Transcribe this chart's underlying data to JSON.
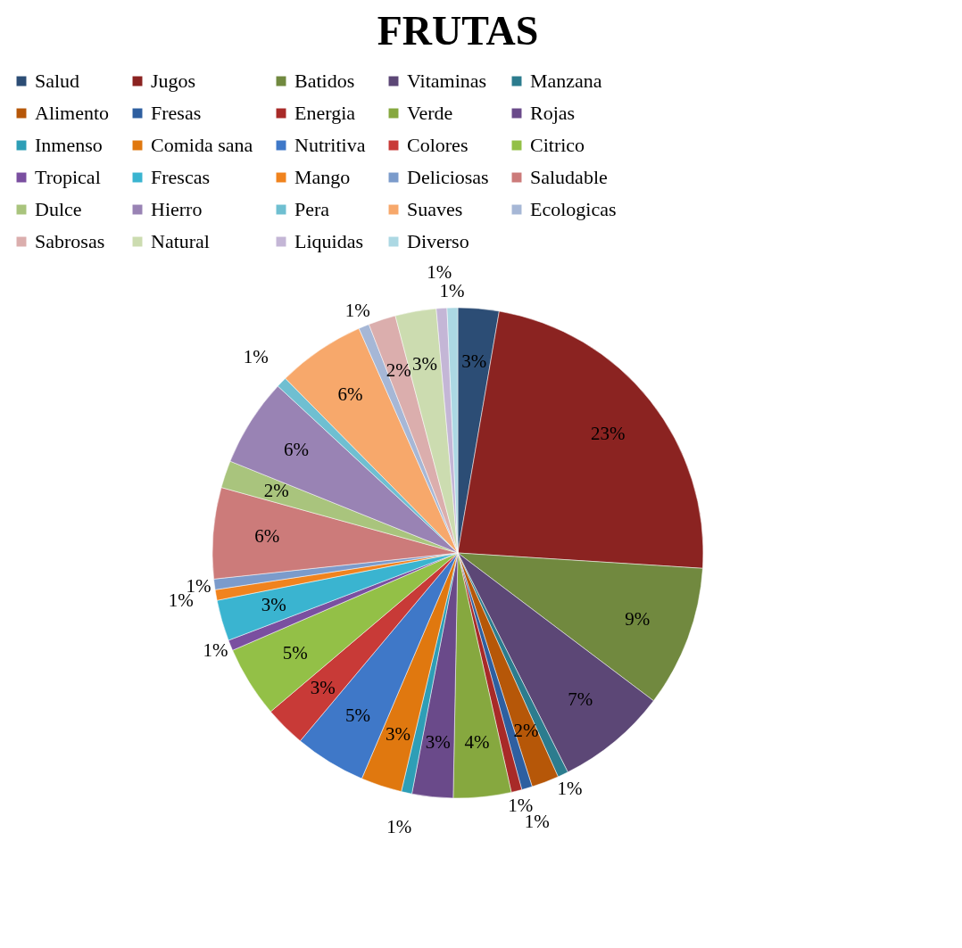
{
  "chart_data": {
    "type": "pie",
    "title": "FRUTAS",
    "categories": [
      "Salud",
      "Jugos",
      "Batidos",
      "Vitaminas",
      "Manzana",
      "Alimento",
      "Fresas",
      "Energia",
      "Verde",
      "Rojas",
      "Inmenso",
      "Comida sana",
      "Nutritiva",
      "Colores",
      "Citrico",
      "Tropical",
      "Frescas",
      "Mango",
      "Deliciosas",
      "Saludable",
      "Dulce",
      "Hierro",
      "Pera",
      "Suaves",
      "Ecologicas",
      "Sabrosas",
      "Natural",
      "Liquidas",
      "Diverso"
    ],
    "values": [
      2.7,
      23.3,
      9.3,
      7.3,
      0.7,
      1.8,
      0.7,
      0.7,
      3.8,
      2.7,
      0.7,
      2.7,
      4.7,
      2.7,
      4.7,
      0.7,
      2.7,
      0.7,
      0.7,
      6.0,
      1.8,
      5.8,
      0.7,
      5.8,
      0.7,
      1.8,
      2.7,
      0.7,
      0.7
    ],
    "value_labels": [
      "3%",
      "23%",
      "9%",
      "7%",
      "1%",
      "2%",
      "1%",
      "1%",
      "4%",
      "3%",
      "1%",
      "3%",
      "5%",
      "3%",
      "5%",
      "1%",
      "3%",
      "1%",
      "1%",
      "6%",
      "2%",
      "6%",
      "1%",
      "6%",
      "1%",
      "2%",
      "3%",
      "1%",
      "1%"
    ],
    "colors": [
      "#2c4d75",
      "#8b2321",
      "#71893f",
      "#5c4776",
      "#2c7c8e",
      "#b65708",
      "#2e5fa0",
      "#a82a28",
      "#86a83f",
      "#6a4a8a",
      "#2e9eb6",
      "#e0780f",
      "#3f78c8",
      "#c83a37",
      "#93c047",
      "#7a4fa0",
      "#3ab4d0",
      "#f0831e",
      "#7b9bcb",
      "#cc7b7a",
      "#a9c47d",
      "#9983b4",
      "#6fbfd1",
      "#f7a86b",
      "#a6b7d6",
      "#dbaead",
      "#ccdcb0",
      "#c4b6d6",
      "#acd8e3"
    ],
    "legend": "top"
  }
}
